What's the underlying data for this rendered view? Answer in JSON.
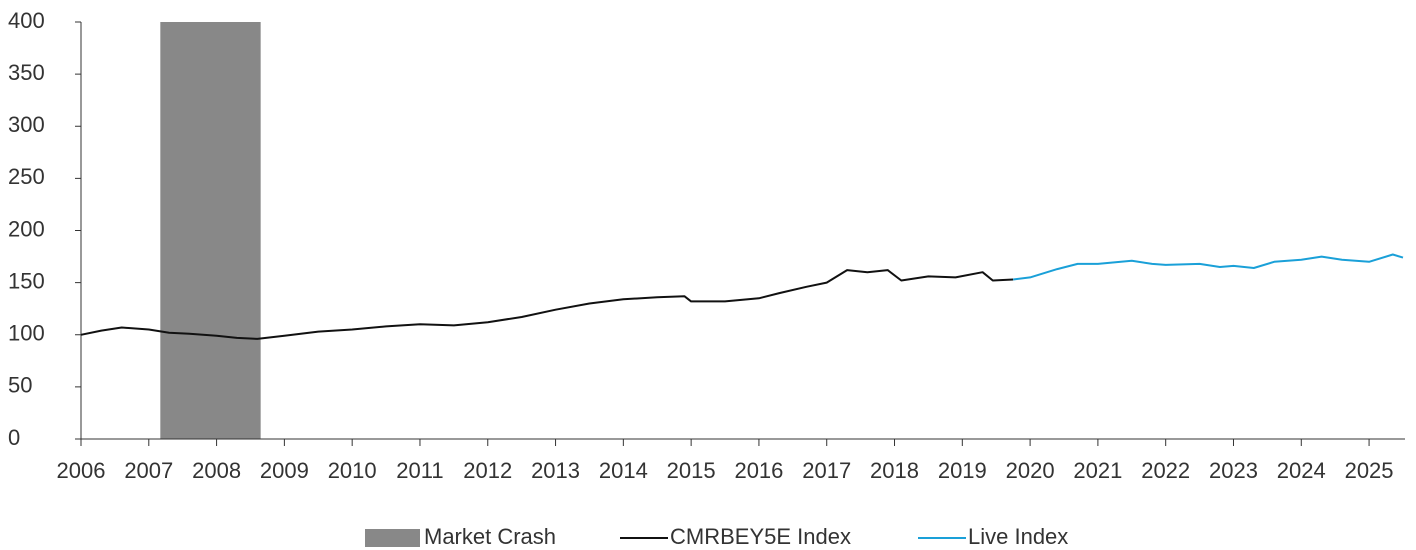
{
  "chart_data": {
    "type": "line",
    "series": [
      {
        "name": "CMRBEY5E Index",
        "color": "#111111",
        "x": [
          2006,
          2006.3,
          2006.6,
          2007,
          2007.3,
          2007.6,
          2008,
          2008.3,
          2008.6,
          2009,
          2009.5,
          2010,
          2010.5,
          2011,
          2011.5,
          2012,
          2012.5,
          2013,
          2013.5,
          2014,
          2014.5,
          2014.9,
          2015,
          2015.5,
          2016,
          2016.3,
          2016.7,
          2017,
          2017.3,
          2017.6,
          2017.9,
          2018.1,
          2018.5,
          2018.9,
          2019.3,
          2019.45,
          2019.75
        ],
        "values": [
          100,
          104,
          107,
          105,
          102,
          101,
          99,
          97,
          96,
          99,
          103,
          105,
          108,
          110,
          109,
          112,
          117,
          124,
          130,
          134,
          136,
          137,
          132,
          132,
          135,
          140,
          146,
          150,
          162,
          160,
          162,
          152,
          156,
          155,
          160,
          152,
          153
        ]
      },
      {
        "name": "Live Index",
        "color": "#1aa0d8",
        "x": [
          2019.75,
          2020,
          2020.4,
          2020.7,
          2021,
          2021.5,
          2021.8,
          2022,
          2022.5,
          2022.8,
          2023,
          2023.3,
          2023.6,
          2024,
          2024.3,
          2024.6,
          2025,
          2025.35,
          2025.5
        ],
        "values": [
          153,
          155,
          163,
          168,
          168,
          171,
          168,
          167,
          168,
          165,
          166,
          164,
          170,
          172,
          175,
          172,
          170,
          177,
          174
        ]
      }
    ],
    "shaded_regions": [
      {
        "name": "Market Crash",
        "xlim": [
          2007.17,
          2008.65
        ],
        "color": "#888888"
      }
    ],
    "xlim": [
      2006,
      2025.53
    ],
    "xticks": [
      2006,
      2007,
      2008,
      2009,
      2010,
      2011,
      2012,
      2013,
      2014,
      2015,
      2016,
      2017,
      2018,
      2019,
      2020,
      2021,
      2022,
      2023,
      2024,
      2025
    ],
    "ylim": [
      0,
      400
    ],
    "yticks": [
      0,
      50,
      100,
      150,
      200,
      250,
      300,
      350,
      400
    ],
    "legend": "bottom"
  }
}
